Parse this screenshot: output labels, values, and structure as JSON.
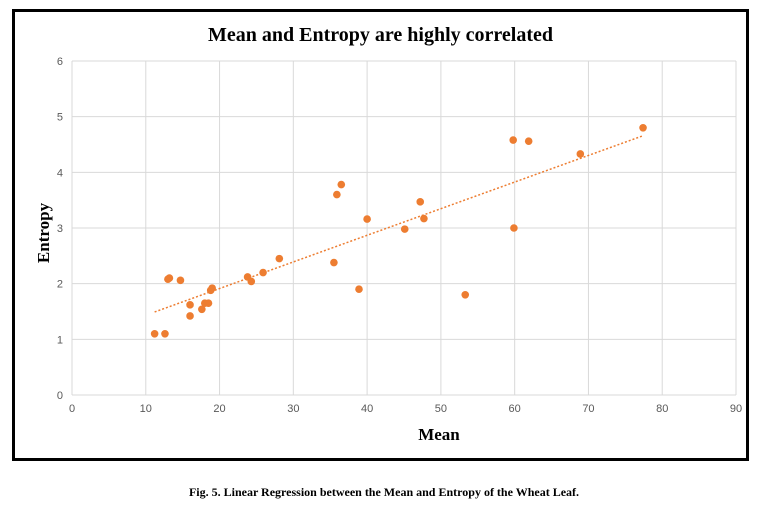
{
  "chart_data": {
    "type": "scatter",
    "title": "Mean and Entropy are highly correlated",
    "xlabel": "Mean",
    "ylabel": "Entropy",
    "xlim": [
      0,
      90
    ],
    "ylim": [
      0,
      6
    ],
    "x_ticks": [
      "0",
      "10",
      "20",
      "30",
      "40",
      "50",
      "60",
      "70",
      "80",
      "90"
    ],
    "y_ticks": [
      "0",
      "1",
      "2",
      "3",
      "4",
      "5",
      "6"
    ],
    "grid": true,
    "trendline": "linear",
    "colors": {
      "points": "#ed7d31",
      "trend": "#ed7d31",
      "grid": "#d9d9d9"
    },
    "series": [
      {
        "points": [
          [
            11.2,
            1.1
          ],
          [
            12.6,
            1.1
          ],
          [
            13.0,
            2.08
          ],
          [
            13.2,
            2.1
          ],
          [
            14.7,
            2.06
          ],
          [
            16.0,
            1.62
          ],
          [
            16.0,
            1.42
          ],
          [
            17.6,
            1.54
          ],
          [
            18.0,
            1.65
          ],
          [
            18.5,
            1.65
          ],
          [
            18.8,
            1.88
          ],
          [
            19.0,
            1.92
          ],
          [
            23.8,
            2.12
          ],
          [
            24.3,
            2.04
          ],
          [
            25.9,
            2.2
          ],
          [
            28.1,
            2.45
          ],
          [
            35.5,
            2.38
          ],
          [
            35.9,
            3.6
          ],
          [
            36.5,
            3.78
          ],
          [
            38.9,
            1.9
          ],
          [
            40.0,
            3.16
          ],
          [
            45.1,
            2.98
          ],
          [
            47.2,
            3.47
          ],
          [
            47.7,
            3.17
          ],
          [
            53.3,
            1.8
          ],
          [
            59.8,
            4.58
          ],
          [
            59.9,
            3.0
          ],
          [
            61.9,
            4.56
          ],
          [
            68.9,
            4.33
          ],
          [
            77.4,
            4.8
          ]
        ]
      }
    ]
  },
  "caption": "Fig. 5. Linear Regression between the Mean and Entropy of the Wheat Leaf."
}
